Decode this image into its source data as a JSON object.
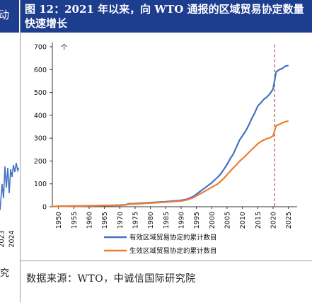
{
  "left_panel": {
    "title_fragment": "动",
    "footer_fragment": "究",
    "year_labels": [
      "2023",
      "2024"
    ]
  },
  "figure": {
    "title": "图 12：2021 年以来，向 WTO 通报的区域贸易协定数量快速增长",
    "source": "数据来源：WTO，中诚信国际研究院"
  },
  "colors": {
    "blue": "#4472c4",
    "orange": "#ed7d31",
    "marker": "#c0504d",
    "title_bg": "#1d3d8f"
  },
  "chart_data": {
    "type": "line",
    "unit": "个",
    "ylim": [
      0,
      700
    ],
    "yticks": [
      0,
      100,
      200,
      300,
      400,
      500,
      600,
      700
    ],
    "xlim": [
      1948,
      2026
    ],
    "xticks": [
      1950,
      1955,
      1960,
      1965,
      1970,
      1975,
      1980,
      1985,
      1990,
      1995,
      2000,
      2005,
      2010,
      2015,
      2020,
      2025
    ],
    "vline_x": 2020.5,
    "legend_placement": "bottom",
    "series": [
      {
        "name": "有效区域贸易协定的累计数目",
        "color": "#4472c4",
        "x": [
          1948,
          1950,
          1955,
          1958,
          1960,
          1965,
          1970,
          1972,
          1973,
          1975,
          1980,
          1985,
          1990,
          1992,
          1994,
          1995,
          1997,
          1998,
          2000,
          2002,
          2003,
          2004,
          2005,
          2006,
          2007,
          2008,
          2009,
          2010,
          2011,
          2012,
          2013,
          2014,
          2015,
          2016,
          2017,
          2018,
          2019,
          2020,
          2021,
          2022,
          2023,
          2024,
          2025
        ],
        "y": [
          1,
          2,
          3,
          3,
          4,
          5,
          7,
          9,
          13,
          14,
          18,
          22,
          28,
          33,
          45,
          55,
          75,
          85,
          105,
          130,
          145,
          165,
          185,
          210,
          230,
          260,
          290,
          310,
          330,
          355,
          385,
          410,
          440,
          455,
          470,
          480,
          495,
          515,
          590,
          600,
          605,
          615,
          618
        ]
      },
      {
        "name": "生效区域贸易协定的累计数目",
        "color": "#ed7d31",
        "x": [
          1948,
          1950,
          1955,
          1958,
          1960,
          1965,
          1970,
          1972,
          1973,
          1975,
          1980,
          1985,
          1990,
          1992,
          1994,
          1995,
          1997,
          1998,
          2000,
          2002,
          2003,
          2004,
          2005,
          2006,
          2007,
          2008,
          2009,
          2010,
          2011,
          2012,
          2013,
          2014,
          2015,
          2016,
          2017,
          2018,
          2019,
          2020,
          2021,
          2022,
          2023,
          2024,
          2025
        ],
        "y": [
          1,
          2,
          3,
          3,
          4,
          5,
          6,
          8,
          11,
          12,
          16,
          20,
          25,
          30,
          40,
          48,
          62,
          70,
          85,
          100,
          112,
          125,
          140,
          155,
          170,
          182,
          198,
          210,
          222,
          236,
          250,
          262,
          275,
          285,
          292,
          298,
          302,
          310,
          355,
          360,
          367,
          372,
          375
        ]
      }
    ]
  }
}
